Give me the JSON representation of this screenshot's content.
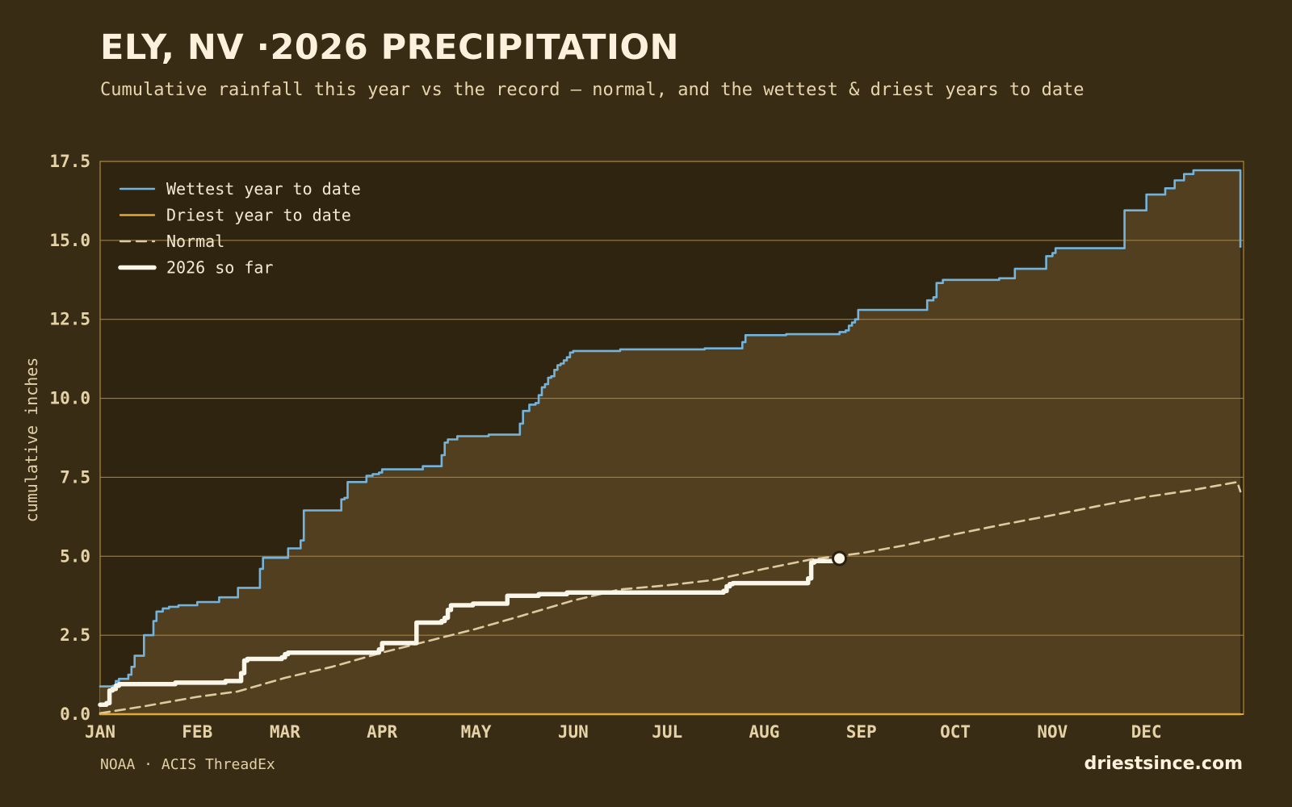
{
  "header": {
    "title": "ELY, NV ·2026 PRECIPITATION",
    "subtitle": "Cumulative rainfall this year vs the record — normal, and the wettest & driest years to date"
  },
  "footer": {
    "source": "NOAA · ACIS ThreadEx",
    "brand": "driestsince.com"
  },
  "colors": {
    "background": "#392c14",
    "plot_background": "#2f2410",
    "band_fill": "#523f1f",
    "gridline": "#b38a34",
    "wettest": "#74b4dc",
    "driest": "#e0aa38",
    "normal": "#ddcb9f",
    "current": "#fbf6ea",
    "tick_text": "#e5d2a6"
  },
  "chart_data": {
    "type": "line",
    "title": "ELY, NV ·2026 PRECIPITATION",
    "xlabel": "",
    "ylabel": "cumulative inches",
    "x_unit": "day of year",
    "xlim": [
      1,
      366
    ],
    "ylim": [
      0,
      17.5
    ],
    "y_ticks": [
      "0.0",
      "2.5",
      "5.0",
      "7.5",
      "10.0",
      "12.5",
      "15.0",
      "17.5"
    ],
    "y_tick_values": [
      0,
      2.5,
      5,
      7.5,
      10,
      12.5,
      15,
      17.5
    ],
    "x_ticks": [
      "JAN",
      "FEB",
      "MAR",
      "APR",
      "MAY",
      "JUN",
      "JUL",
      "AUG",
      "SEP",
      "OCT",
      "NOV",
      "DEC"
    ],
    "x_tick_days": [
      1,
      32,
      60,
      91,
      121,
      152,
      182,
      213,
      244,
      274,
      305,
      335
    ],
    "grid": true,
    "legend_position": "top-left",
    "legend": [
      "Wettest year to date",
      "Driest year to date",
      "Normal",
      "2026 so far"
    ],
    "series": [
      {
        "name": "Wettest year to date",
        "style": "step",
        "points": [
          [
            1,
            0.88
          ],
          [
            4,
            0.88
          ],
          [
            5,
            0.9
          ],
          [
            6,
            1.05
          ],
          [
            7,
            1.12
          ],
          [
            10,
            1.25
          ],
          [
            11,
            1.5
          ],
          [
            12,
            1.85
          ],
          [
            14,
            1.85
          ],
          [
            15,
            2.5
          ],
          [
            17,
            2.5
          ],
          [
            18,
            2.95
          ],
          [
            19,
            3.25
          ],
          [
            21,
            3.35
          ],
          [
            23,
            3.4
          ],
          [
            26,
            3.45
          ],
          [
            32,
            3.55
          ],
          [
            39,
            3.7
          ],
          [
            45,
            4.0
          ],
          [
            51,
            4.0
          ],
          [
            52,
            4.6
          ],
          [
            53,
            4.95
          ],
          [
            60,
            4.95
          ],
          [
            61,
            5.25
          ],
          [
            64,
            5.25
          ],
          [
            65,
            5.5
          ],
          [
            66,
            6.45
          ],
          [
            77,
            6.45
          ],
          [
            78,
            6.8
          ],
          [
            79,
            6.85
          ],
          [
            80,
            7.35
          ],
          [
            85,
            7.35
          ],
          [
            86,
            7.55
          ],
          [
            88,
            7.6
          ],
          [
            90,
            7.65
          ],
          [
            91,
            7.75
          ],
          [
            103,
            7.75
          ],
          [
            104,
            7.85
          ],
          [
            109,
            7.85
          ],
          [
            110,
            8.2
          ],
          [
            111,
            8.6
          ],
          [
            112,
            8.7
          ],
          [
            114,
            8.7
          ],
          [
            115,
            8.8
          ],
          [
            120,
            8.8
          ],
          [
            125,
            8.85
          ],
          [
            134,
            8.85
          ],
          [
            135,
            9.2
          ],
          [
            136,
            9.6
          ],
          [
            137,
            9.6
          ],
          [
            138,
            9.8
          ],
          [
            140,
            9.85
          ],
          [
            141,
            10.1
          ],
          [
            142,
            10.35
          ],
          [
            143,
            10.45
          ],
          [
            144,
            10.65
          ],
          [
            145,
            10.7
          ],
          [
            146,
            10.9
          ],
          [
            147,
            11.05
          ],
          [
            148,
            11.1
          ],
          [
            149,
            11.2
          ],
          [
            150,
            11.3
          ],
          [
            151,
            11.45
          ],
          [
            152,
            11.5
          ],
          [
            166,
            11.5
          ],
          [
            167,
            11.55
          ],
          [
            193,
            11.55
          ],
          [
            194,
            11.58
          ],
          [
            205,
            11.58
          ],
          [
            206,
            11.78
          ],
          [
            207,
            12.0
          ],
          [
            219,
            12.0
          ],
          [
            220,
            12.03
          ],
          [
            236,
            12.03
          ],
          [
            237,
            12.1
          ],
          [
            239,
            12.15
          ],
          [
            240,
            12.3
          ],
          [
            241,
            12.4
          ],
          [
            242,
            12.5
          ],
          [
            243,
            12.8
          ],
          [
            264,
            12.8
          ],
          [
            265,
            13.1
          ],
          [
            267,
            13.2
          ],
          [
            268,
            13.65
          ],
          [
            270,
            13.75
          ],
          [
            287,
            13.75
          ],
          [
            288,
            13.8
          ],
          [
            292,
            13.8
          ],
          [
            293,
            14.1
          ],
          [
            302,
            14.1
          ],
          [
            303,
            14.5
          ],
          [
            305,
            14.6
          ],
          [
            306,
            14.75
          ],
          [
            327,
            14.75
          ],
          [
            328,
            15.95
          ],
          [
            334,
            15.95
          ],
          [
            335,
            16.45
          ],
          [
            340,
            16.45
          ],
          [
            341,
            16.65
          ],
          [
            343,
            16.65
          ],
          [
            344,
            16.9
          ],
          [
            346,
            16.9
          ],
          [
            347,
            17.1
          ],
          [
            349,
            17.1
          ],
          [
            350,
            17.22
          ],
          [
            364,
            17.22
          ],
          [
            365,
            14.8
          ]
        ]
      },
      {
        "name": "Driest year to date",
        "style": "step",
        "points": [
          [
            1,
            0
          ],
          [
            365,
            0
          ]
        ]
      },
      {
        "name": "Normal",
        "style": "dashed",
        "points": [
          [
            1,
            0.03
          ],
          [
            15,
            0.25
          ],
          [
            32,
            0.55
          ],
          [
            45,
            0.72
          ],
          [
            60,
            1.15
          ],
          [
            75,
            1.5
          ],
          [
            91,
            1.95
          ],
          [
            105,
            2.3
          ],
          [
            121,
            2.7
          ],
          [
            135,
            3.1
          ],
          [
            152,
            3.6
          ],
          [
            167,
            3.95
          ],
          [
            182,
            4.08
          ],
          [
            197,
            4.25
          ],
          [
            213,
            4.6
          ],
          [
            228,
            4.9
          ],
          [
            244,
            5.1
          ],
          [
            258,
            5.35
          ],
          [
            274,
            5.7
          ],
          [
            289,
            6.0
          ],
          [
            305,
            6.3
          ],
          [
            320,
            6.6
          ],
          [
            335,
            6.88
          ],
          [
            350,
            7.1
          ],
          [
            364,
            7.35
          ],
          [
            365,
            7.05
          ]
        ]
      },
      {
        "name": "2026 so far",
        "style": "step",
        "points": [
          [
            1,
            0.3
          ],
          [
            2,
            0.3
          ],
          [
            3,
            0.35
          ],
          [
            4,
            0.75
          ],
          [
            5,
            0.8
          ],
          [
            6,
            0.9
          ],
          [
            7,
            0.95
          ],
          [
            24,
            0.95
          ],
          [
            25,
            1.0
          ],
          [
            40,
            1.0
          ],
          [
            41,
            1.05
          ],
          [
            45,
            1.05
          ],
          [
            46,
            1.3
          ],
          [
            47,
            1.7
          ],
          [
            48,
            1.75
          ],
          [
            56,
            1.75
          ],
          [
            59,
            1.8
          ],
          [
            60,
            1.9
          ],
          [
            61,
            1.95
          ],
          [
            89,
            1.95
          ],
          [
            90,
            2.05
          ],
          [
            91,
            2.25
          ],
          [
            101,
            2.25
          ],
          [
            102,
            2.9
          ],
          [
            109,
            2.9
          ],
          [
            110,
            2.95
          ],
          [
            111,
            3.05
          ],
          [
            112,
            3.3
          ],
          [
            113,
            3.45
          ],
          [
            119,
            3.45
          ],
          [
            120,
            3.5
          ],
          [
            130,
            3.5
          ],
          [
            131,
            3.75
          ],
          [
            140,
            3.75
          ],
          [
            141,
            3.8
          ],
          [
            149,
            3.8
          ],
          [
            150,
            3.85
          ],
          [
            191,
            3.85
          ],
          [
            200,
            3.9
          ],
          [
            201,
            4.05
          ],
          [
            202,
            4.12
          ],
          [
            203,
            4.15
          ],
          [
            226,
            4.15
          ],
          [
            227,
            4.3
          ],
          [
            228,
            4.8
          ],
          [
            229,
            4.85
          ],
          [
            236,
            4.87
          ],
          [
            237,
            4.93
          ]
        ]
      }
    ],
    "current_marker": {
      "x": 237,
      "y": 4.93
    }
  }
}
